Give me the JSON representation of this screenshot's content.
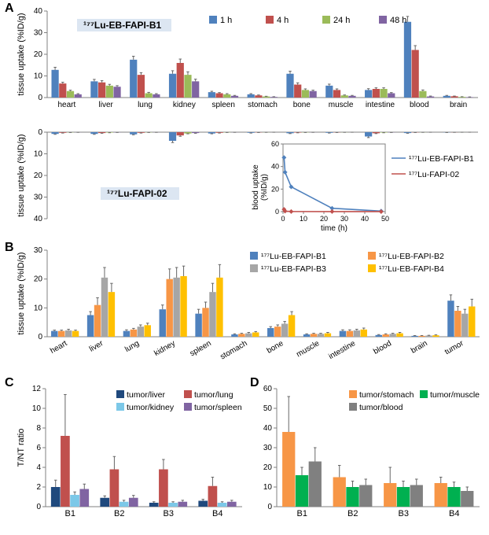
{
  "palette": {
    "series4": [
      "#4f81bd",
      "#c0504d",
      "#9bbb59",
      "#8064a2"
    ],
    "seriesB": [
      "#4f81bd",
      "#f79646",
      "#a6a6a6",
      "#ffc000"
    ],
    "ratioC": [
      "#1f497d",
      "#c0504d",
      "#7cc8e8",
      "#8064a2"
    ],
    "ratioD": [
      "#f79646",
      "#00b050",
      "#808080"
    ],
    "tag_bg": "#dce6f2",
    "axis": "#808080",
    "error": "#666666"
  },
  "panelA": {
    "label": "A",
    "ylabel_top": "tissue uptake (%ID/g)",
    "ylabel_bot": "tissue uptake (%ID/g)",
    "categories": [
      "heart",
      "liver",
      "lung",
      "kidney",
      "spleen",
      "stomach",
      "bone",
      "muscle",
      "intestine",
      "blood",
      "brain"
    ],
    "legend": [
      "1 h",
      "4 h",
      "24 h",
      "48 h"
    ],
    "top_title": "¹⁷⁷Lu-EB-FAPI-B1",
    "bot_title": "¹⁷⁷Lu-FAPI-02",
    "ylim_top": [
      0,
      40
    ],
    "ytick_top": 10,
    "ylim_bot": [
      0,
      40
    ],
    "ytick_bot": 10,
    "top_data": [
      [
        12.8,
        6.5,
        3.0,
        1.5
      ],
      [
        7.5,
        7.0,
        5.5,
        5.0
      ],
      [
        17.5,
        10.5,
        2.0,
        1.5
      ],
      [
        11.0,
        16.0,
        10.5,
        7.5
      ],
      [
        2.5,
        2.0,
        1.5,
        0.8
      ],
      [
        1.5,
        1.0,
        0.5,
        0.3
      ],
      [
        11.0,
        6.0,
        3.5,
        3.0
      ],
      [
        5.5,
        3.5,
        1.0,
        0.8
      ],
      [
        3.5,
        4.0,
        4.0,
        2.0
      ],
      [
        35.0,
        22.0,
        3.0,
        0.5
      ],
      [
        0.8,
        0.6,
        0.3,
        0.2
      ]
    ],
    "top_err": [
      [
        1.2,
        0.6,
        0.4,
        0.3
      ],
      [
        0.9,
        0.8,
        0.6,
        0.5
      ],
      [
        1.6,
        1.0,
        0.4,
        0.3
      ],
      [
        1.4,
        1.8,
        1.4,
        1.0
      ],
      [
        0.4,
        0.3,
        0.3,
        0.2
      ],
      [
        0.3,
        0.2,
        0.1,
        0.1
      ],
      [
        1.2,
        0.8,
        0.5,
        0.4
      ],
      [
        0.7,
        0.5,
        0.2,
        0.2
      ],
      [
        0.6,
        0.5,
        0.5,
        0.3
      ],
      [
        2.5,
        2.0,
        0.5,
        0.2
      ],
      [
        0.2,
        0.1,
        0.1,
        0.1
      ]
    ],
    "bot_data": [
      [
        0.8,
        0.3,
        0.1,
        0.05
      ],
      [
        0.8,
        0.4,
        0.2,
        0.1
      ],
      [
        1.0,
        0.3,
        0.1,
        0.05
      ],
      [
        4.0,
        1.5,
        0.6,
        0.4
      ],
      [
        0.6,
        0.3,
        0.1,
        0.05
      ],
      [
        0.3,
        0.1,
        0.05,
        0.02
      ],
      [
        0.5,
        0.2,
        0.1,
        0.05
      ],
      [
        0.3,
        0.1,
        0.05,
        0.02
      ],
      [
        2.0,
        0.5,
        0.2,
        0.1
      ],
      [
        0.4,
        0.1,
        0.05,
        0.02
      ],
      [
        0.1,
        0.05,
        0.02,
        0.01
      ]
    ],
    "bot_err": [
      [
        0.2,
        0.1,
        0.05,
        0.02
      ],
      [
        0.2,
        0.1,
        0.05,
        0.02
      ],
      [
        0.2,
        0.1,
        0.03,
        0.02
      ],
      [
        0.8,
        0.4,
        0.15,
        0.1
      ],
      [
        0.15,
        0.1,
        0.03,
        0.02
      ],
      [
        0.1,
        0.05,
        0.02,
        0.01
      ],
      [
        0.15,
        0.08,
        0.03,
        0.02
      ],
      [
        0.1,
        0.05,
        0.02,
        0.01
      ],
      [
        0.5,
        0.15,
        0.06,
        0.03
      ],
      [
        0.1,
        0.05,
        0.02,
        0.01
      ],
      [
        0.05,
        0.02,
        0.01,
        0.005
      ]
    ]
  },
  "inset": {
    "xlabel": "time (h)",
    "ylabel": "blood uptake\n(%ID/g)",
    "xlim": [
      0,
      50
    ],
    "xtick": 10,
    "ylim": [
      0,
      60
    ],
    "ytick": 20,
    "legend": [
      "¹⁷⁷Lu-EB-FAPI-B1",
      "¹⁷⁷Lu-FAPI-02"
    ],
    "colors": [
      "#4f81bd",
      "#c0504d"
    ],
    "series": [
      {
        "x": [
          0.5,
          1,
          4,
          24,
          48
        ],
        "y": [
          48,
          35,
          22,
          3,
          0.5
        ]
      },
      {
        "x": [
          0.5,
          1,
          4,
          24,
          48
        ],
        "y": [
          2,
          0.4,
          0.1,
          0.05,
          0.02
        ]
      }
    ]
  },
  "panelB": {
    "label": "B",
    "ylabel": "tissue uptake (%ID/g)",
    "ylim": [
      0,
      30
    ],
    "ytick": 10,
    "categories": [
      "heart",
      "liver",
      "lung",
      "kidney",
      "spleen",
      "stomach",
      "bone",
      "muscle",
      "intestine",
      "blood",
      "brain",
      "tumor"
    ],
    "legend": [
      "¹⁷⁷Lu-EB-FAPI-B1",
      "¹⁷⁷Lu-EB-FAPI-B2",
      "¹⁷⁷Lu-EB-FAPI-B3",
      "¹⁷⁷Lu-EB-FAPI-B4"
    ],
    "data": [
      [
        2.0,
        2.0,
        2.2,
        2.0
      ],
      [
        7.5,
        11.0,
        20.5,
        15.5
      ],
      [
        2.0,
        2.5,
        3.5,
        4.0
      ],
      [
        9.5,
        20.0,
        20.5,
        21.0
      ],
      [
        8.0,
        10.0,
        15.5,
        20.5
      ],
      [
        0.8,
        1.0,
        1.2,
        1.5
      ],
      [
        3.0,
        3.5,
        4.5,
        7.5
      ],
      [
        0.8,
        1.0,
        1.0,
        1.2
      ],
      [
        2.0,
        2.0,
        2.2,
        2.5
      ],
      [
        0.6,
        0.8,
        1.0,
        1.2
      ],
      [
        0.3,
        0.3,
        0.4,
        0.5
      ],
      [
        12.5,
        9.0,
        8.0,
        10.5
      ]
    ],
    "err": [
      [
        0.3,
        0.3,
        0.4,
        0.3
      ],
      [
        1.2,
        2.5,
        3.5,
        3.0
      ],
      [
        0.4,
        0.4,
        0.6,
        0.7
      ],
      [
        1.5,
        3.5,
        3.5,
        3.5
      ],
      [
        1.5,
        2.0,
        3.0,
        4.5
      ],
      [
        0.2,
        0.2,
        0.3,
        0.3
      ],
      [
        0.5,
        0.6,
        0.8,
        1.2
      ],
      [
        0.2,
        0.2,
        0.2,
        0.3
      ],
      [
        0.4,
        0.4,
        0.4,
        0.5
      ],
      [
        0.15,
        0.2,
        0.2,
        0.3
      ],
      [
        0.1,
        0.1,
        0.1,
        0.15
      ],
      [
        2.0,
        1.5,
        1.5,
        2.5
      ]
    ]
  },
  "panelC": {
    "label": "C",
    "ylabel": "T/NT ratio",
    "ylim": [
      0,
      12
    ],
    "ytick": 2,
    "categories": [
      "B1",
      "B2",
      "B3",
      "B4"
    ],
    "legend": [
      "tumor/liver",
      "tumor/lung",
      "tumor/kidney",
      "tumor/spleen"
    ],
    "data": [
      [
        2.0,
        7.2,
        1.2,
        1.8
      ],
      [
        0.9,
        3.8,
        0.5,
        0.9
      ],
      [
        0.4,
        3.8,
        0.4,
        0.5
      ],
      [
        0.6,
        2.1,
        0.4,
        0.5
      ]
    ],
    "err": [
      [
        0.7,
        4.2,
        0.3,
        0.5
      ],
      [
        0.2,
        1.3,
        0.15,
        0.25
      ],
      [
        0.1,
        1.0,
        0.1,
        0.15
      ],
      [
        0.15,
        0.9,
        0.1,
        0.15
      ]
    ]
  },
  "panelD": {
    "label": "D",
    "ylim": [
      0,
      60
    ],
    "ytick": 10,
    "categories": [
      "B1",
      "B2",
      "B3",
      "B4"
    ],
    "legend": [
      "tumor/stomach",
      "tumor/muscle",
      "tumor/blood"
    ],
    "data": [
      [
        38,
        16,
        23
      ],
      [
        15,
        10,
        11
      ],
      [
        12,
        10,
        11
      ],
      [
        12,
        10,
        8
      ]
    ],
    "err": [
      [
        18,
        4,
        7
      ],
      [
        6,
        3,
        3
      ],
      [
        8,
        3,
        3
      ],
      [
        3,
        2.5,
        2
      ]
    ]
  }
}
